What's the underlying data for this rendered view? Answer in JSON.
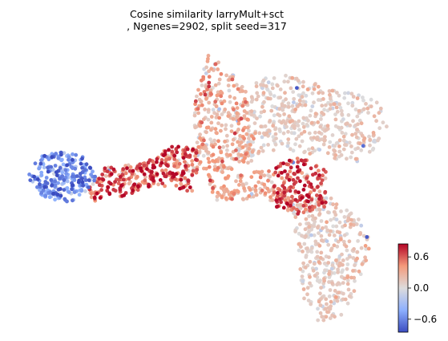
{
  "chart_data": {
    "type": "scatter",
    "title_line1": "Cosine similarity larryMult+sct",
    "title_line2": ", Ngenes=2902, split seed=317",
    "xlabel": "",
    "ylabel": "",
    "grid": false,
    "axes_visible": false,
    "colormap": "coolwarm",
    "colorbar": {
      "vmin": -0.85,
      "vmax": 0.85,
      "ticks": [
        {
          "value": 0.6,
          "label": "0.6"
        },
        {
          "value": 0.0,
          "label": "0.0"
        },
        {
          "value": -0.6,
          "label": "−0.6"
        }
      ],
      "placement": "bottom-right"
    },
    "point_count": 2000,
    "regions": [
      {
        "name": "left-lobe",
        "x_range": [
          0.0,
          0.2
        ],
        "y_range": [
          0.43,
          0.62
        ],
        "value_mean": -0.55
      },
      {
        "name": "bridge",
        "x_range": [
          0.18,
          0.48
        ],
        "y_range": [
          0.45,
          0.64
        ],
        "value_mean": 0.55
      },
      {
        "name": "upper-left-arm",
        "x_range": [
          0.47,
          0.65
        ],
        "y_range": [
          0.3,
          0.97
        ],
        "value_mean": 0.25
      },
      {
        "name": "upper-right-lobe",
        "x_range": [
          0.6,
          1.0
        ],
        "y_range": [
          0.58,
          0.95
        ],
        "value_mean": 0.08
      },
      {
        "name": "central-cluster",
        "x_range": [
          0.65,
          0.8
        ],
        "y_range": [
          0.4,
          0.6
        ],
        "value_mean": 0.65
      },
      {
        "name": "lower-arm",
        "x_range": [
          0.72,
          0.94
        ],
        "y_range": [
          0.0,
          0.47
        ],
        "value_mean": 0.1
      }
    ]
  }
}
